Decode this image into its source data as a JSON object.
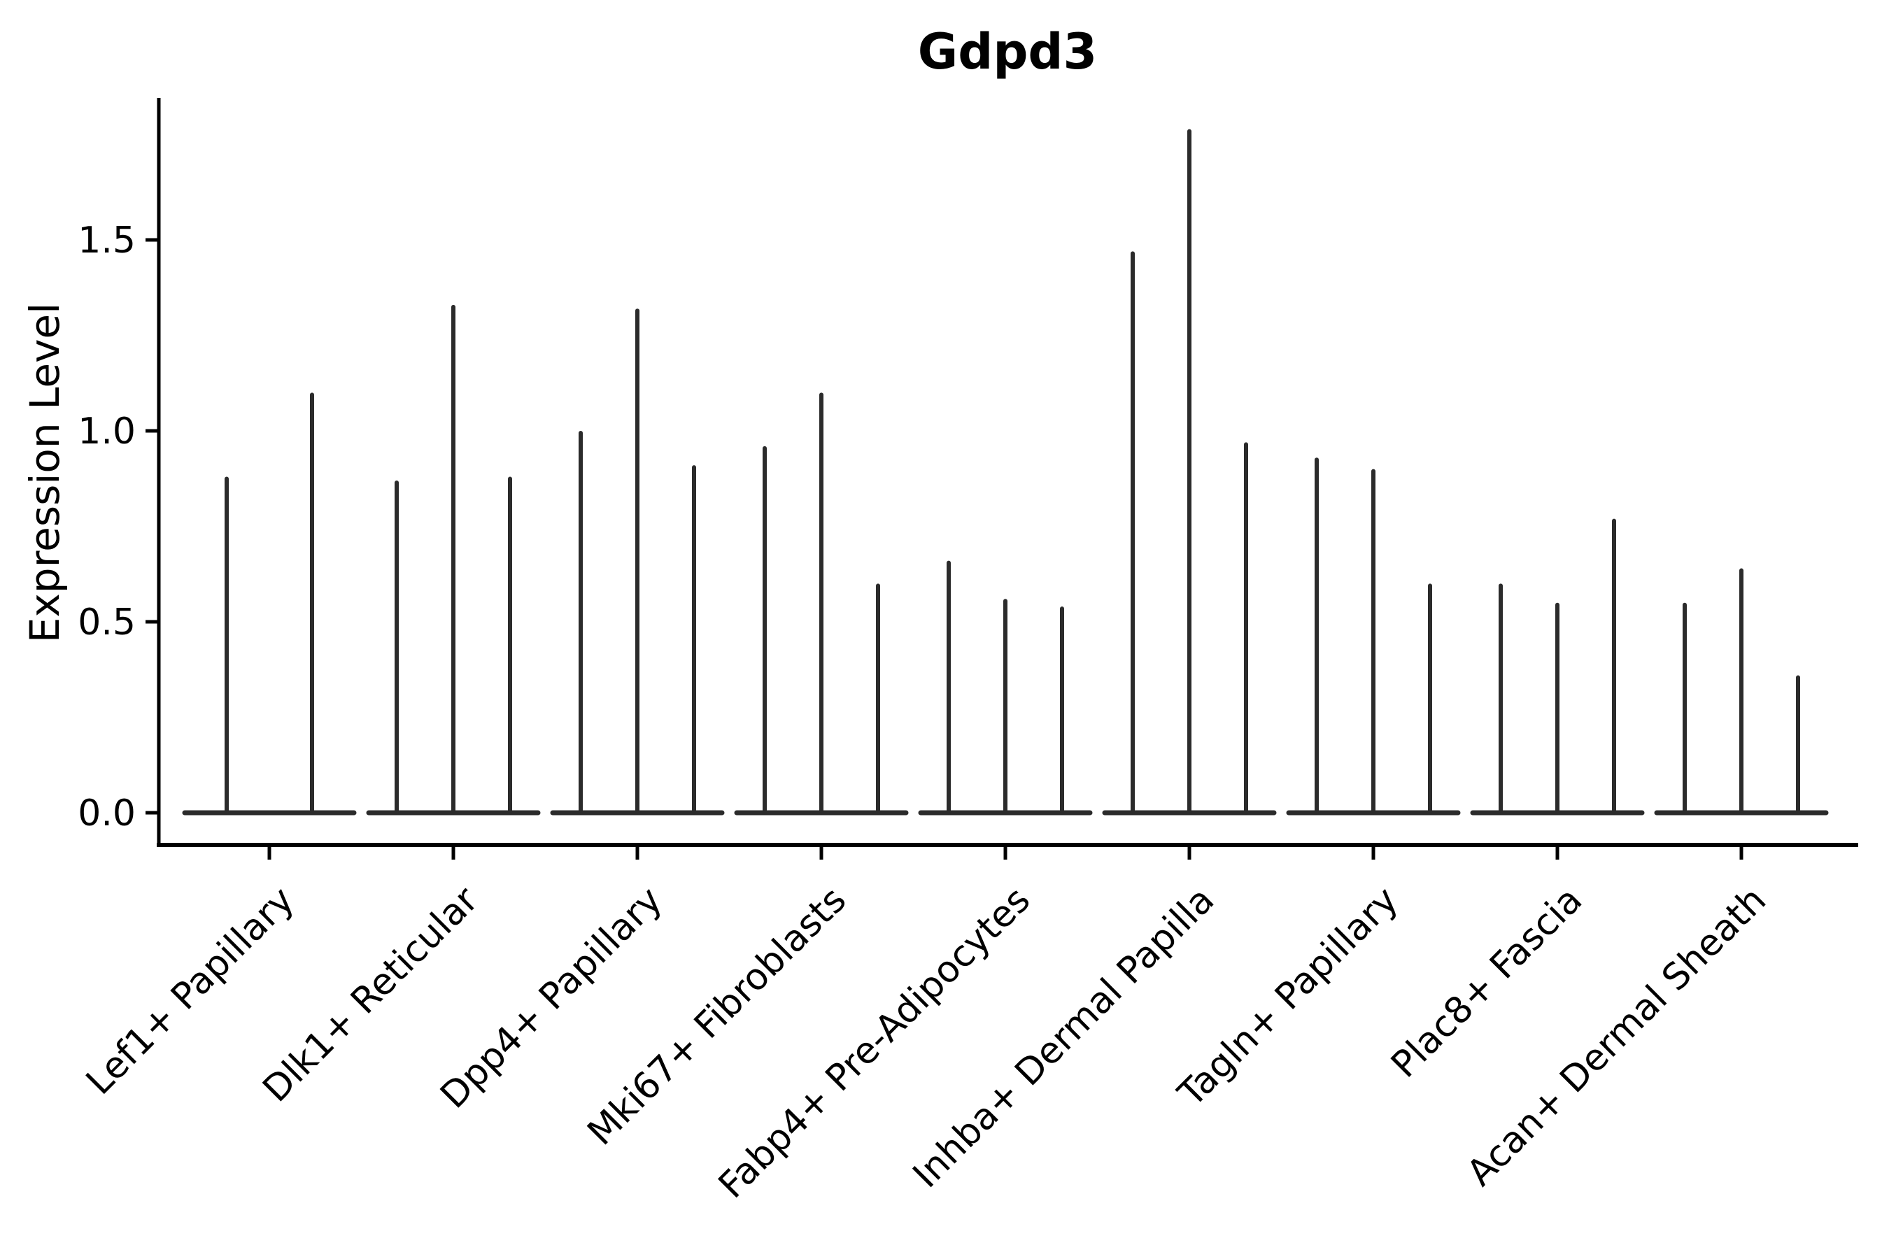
{
  "chart_data": {
    "type": "violin",
    "title": "Gdpd3",
    "ylabel": "Expression Level",
    "xlabel": "",
    "ylim": [
      -0.09,
      1.87
    ],
    "yticks": [
      0.0,
      0.5,
      1.0,
      1.5
    ],
    "ytick_labels": [
      "0.0",
      "0.5",
      "1.0",
      "1.5"
    ],
    "grid": false,
    "legend": false,
    "categories": [
      "Lef1+ Papillary",
      "Dlk1+ Reticular",
      "Dpp4+ Papillary",
      "Mki67+ Fibroblasts",
      "Fabp4+ Pre-Adipocytes",
      "Inhba+ Dermal Papilla",
      "Tagln+ Papillary",
      "Plac8+ Fascia",
      "Acan+ Dermal Sheath"
    ],
    "groups": [
      {
        "category": "Lef1+ Papillary",
        "spike_maxima": [
          0.88,
          1.1
        ]
      },
      {
        "category": "Dlk1+ Reticular",
        "spike_maxima": [
          0.87,
          1.33,
          0.88
        ]
      },
      {
        "category": "Dpp4+ Papillary",
        "spike_maxima": [
          1.0,
          1.32,
          0.91
        ]
      },
      {
        "category": "Mki67+ Fibroblasts",
        "spike_maxima": [
          0.96,
          1.1,
          0.6
        ]
      },
      {
        "category": "Fabp4+ Pre-Adipocytes",
        "spike_maxima": [
          0.66,
          0.56,
          0.54
        ]
      },
      {
        "category": "Inhba+ Dermal Papilla",
        "spike_maxima": [
          1.47,
          1.79,
          0.97
        ]
      },
      {
        "category": "Tagln+ Papillary",
        "spike_maxima": [
          0.93,
          0.9,
          0.6
        ]
      },
      {
        "category": "Plac8+ Fascia",
        "spike_maxima": [
          0.6,
          0.55,
          0.77
        ]
      },
      {
        "category": "Acan+ Dermal Sheath",
        "spike_maxima": [
          0.55,
          0.64,
          0.36
        ]
      }
    ],
    "colors": {
      "violin": "#2b2b2b",
      "axis": "#000000",
      "text": "#000000",
      "background": "#ffffff"
    }
  }
}
